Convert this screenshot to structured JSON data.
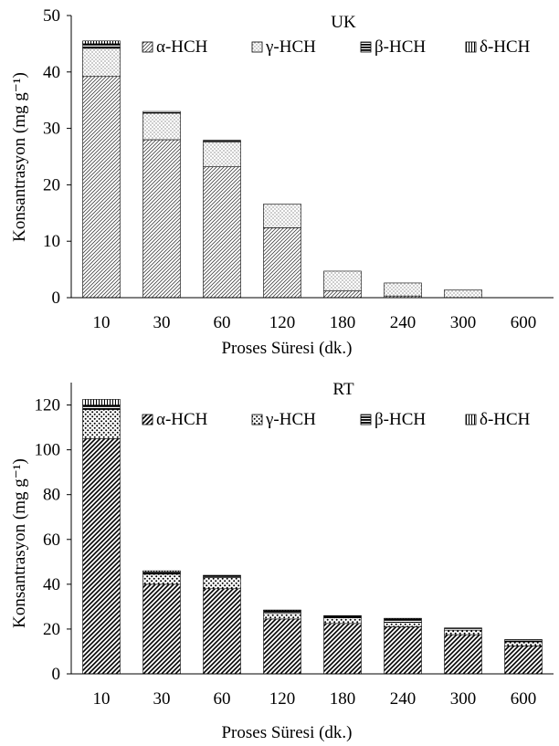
{
  "chart_data": [
    {
      "type": "bar",
      "stacked": true,
      "title": "UK",
      "xlabel": "Proses Süresi (dk.)",
      "ylabel": "Konsantrasyon (mg g⁻¹)",
      "ylim": [
        0,
        50
      ],
      "yticks": [
        0,
        10,
        20,
        30,
        40,
        50
      ],
      "grid": false,
      "legend_position": "top",
      "categories": [
        "10",
        "30",
        "60",
        "120",
        "180",
        "240",
        "300",
        "600"
      ],
      "series": [
        {
          "name": "α-HCH",
          "pattern": "diagonal-fine",
          "values": [
            39.2,
            28.0,
            23.2,
            12.4,
            1.2,
            0.3,
            0.0,
            0.0
          ]
        },
        {
          "name": "γ-HCH",
          "pattern": "dotted-fine",
          "values": [
            5.0,
            4.7,
            4.4,
            4.2,
            3.5,
            2.3,
            1.4,
            0.0
          ]
        },
        {
          "name": "β-HCH",
          "pattern": "horizontal-lines",
          "values": [
            0.8,
            0.3,
            0.3,
            0.0,
            0.0,
            0.0,
            0.0,
            0.0
          ]
        },
        {
          "name": "δ-HCH",
          "pattern": "vertical-lines",
          "values": [
            0.5,
            0.0,
            0.0,
            0.0,
            0.0,
            0.0,
            0.0,
            0.0
          ]
        }
      ]
    },
    {
      "type": "bar",
      "stacked": true,
      "title": "RT",
      "xlabel": "Proses Süresi (dk.)",
      "ylabel": "Konsantrasyon (mg g⁻¹)",
      "ylim": [
        0,
        130
      ],
      "yticks": [
        0,
        20,
        40,
        60,
        80,
        100,
        120
      ],
      "grid": false,
      "legend_position": "top",
      "categories": [
        "10",
        "30",
        "60",
        "120",
        "180",
        "240",
        "300",
        "600"
      ],
      "series": [
        {
          "name": "α-HCH",
          "pattern": "diagonal-bold",
          "values": [
            105,
            40,
            38,
            24.5,
            22.5,
            21,
            17.5,
            12.5
          ]
        },
        {
          "name": "γ-HCH",
          "pattern": "dotted-bold",
          "values": [
            13,
            4.5,
            5,
            2.5,
            2.5,
            2,
            2,
            1.8
          ]
        },
        {
          "name": "β-HCH",
          "pattern": "horizontal-lines",
          "values": [
            2,
            1,
            0.8,
            1.2,
            0.8,
            1.5,
            0.8,
            0.8
          ]
        },
        {
          "name": "δ-HCH",
          "pattern": "vertical-lines",
          "values": [
            2.5,
            0.5,
            0.2,
            0.3,
            0.2,
            0.3,
            0.2,
            0.2
          ]
        }
      ]
    }
  ]
}
